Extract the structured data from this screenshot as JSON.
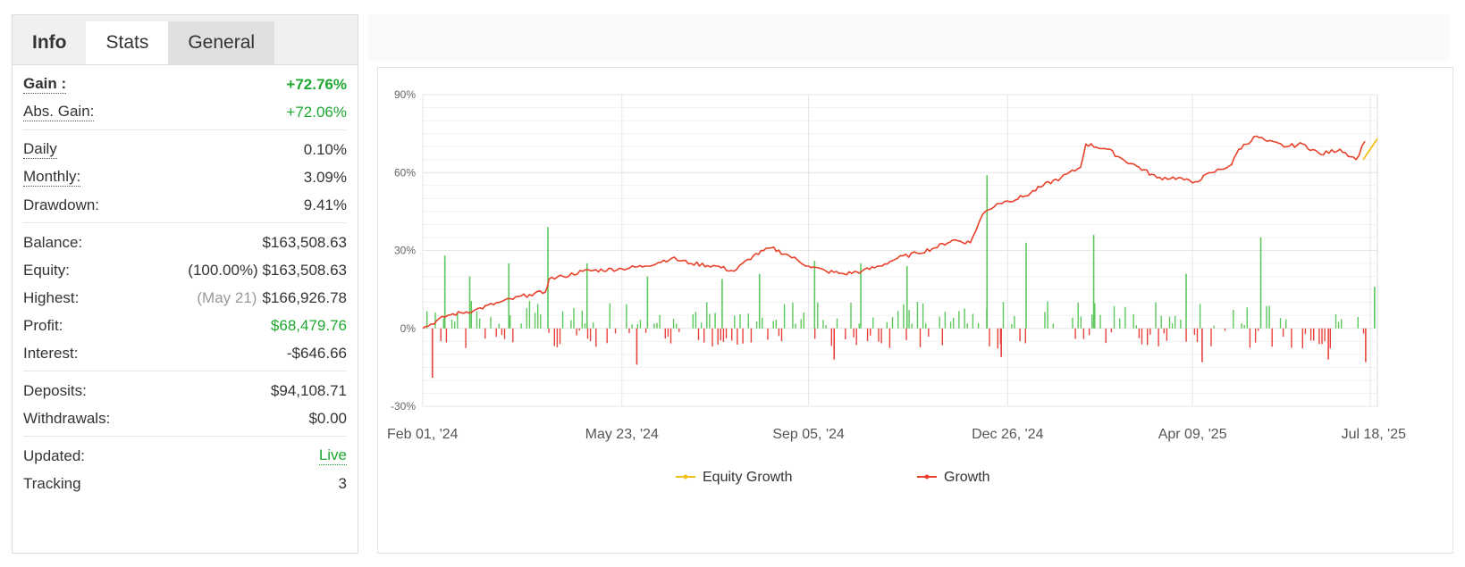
{
  "tabs": [
    {
      "label": "Info"
    },
    {
      "label": "Stats"
    },
    {
      "label": "General"
    }
  ],
  "stats": {
    "gain": {
      "label": "Gain :",
      "value": "+72.76%"
    },
    "abs_gain": {
      "label": "Abs. Gain:",
      "value": "+72.06%"
    },
    "daily": {
      "label": "Daily",
      "value": "0.10%"
    },
    "monthly": {
      "label": "Monthly:",
      "value": "3.09%"
    },
    "drawdown": {
      "label": "Drawdown:",
      "value": "9.41%"
    },
    "balance": {
      "label": "Balance:",
      "value": "$163,508.63"
    },
    "equity": {
      "label": "Equity:",
      "note": "(100.00%)",
      "value": "$163,508.63"
    },
    "highest": {
      "label": "Highest:",
      "note": "(May 21)",
      "value": "$166,926.78"
    },
    "profit": {
      "label": "Profit:",
      "value": "$68,479.76"
    },
    "interest": {
      "label": "Interest:",
      "value": "-$646.66"
    },
    "deposits": {
      "label": "Deposits:",
      "value": "$94,108.71"
    },
    "withdrawals": {
      "label": "Withdrawals:",
      "value": "$0.00"
    },
    "updated": {
      "label": "Updated:",
      "value": "Live"
    },
    "tracking": {
      "label": "Tracking",
      "value": "3"
    }
  },
  "colors": {
    "growth": "#e8412a",
    "equity_growth": "#f2c019",
    "bar_positive": "#5cc85c",
    "bar_negative": "#e8413c",
    "grid": "#e6e6e6"
  },
  "chart_data": {
    "type": "line",
    "x_tick_labels": [
      "Feb 01, '24",
      "May 23, '24",
      "Sep 05, '24",
      "Dec 26, '24",
      "Apr 09, '25",
      "Jul 18, '25"
    ],
    "x_ticks": [
      "2024-02-01",
      "2024-05-23",
      "2024-09-05",
      "2024-12-26",
      "2025-04-09",
      "2025-07-18"
    ],
    "xlim": [
      "2024-02-01",
      "2025-07-22"
    ],
    "y_tick_labels": [
      "90%",
      "60%",
      "30%",
      "0%",
      "-30%"
    ],
    "ylim": [
      -30,
      90
    ],
    "y_ticks": [
      90,
      60,
      30,
      0,
      -30
    ],
    "grid": true,
    "legend": {
      "placement": "bottom-center",
      "entries": [
        "Equity Growth",
        "Growth"
      ]
    },
    "series": [
      {
        "name": "Growth",
        "kind": "line",
        "x": [
          "2024-02-01",
          "2024-02-15",
          "2024-03-01",
          "2024-03-15",
          "2024-04-01",
          "2024-04-10",
          "2024-04-12",
          "2024-04-20",
          "2024-05-01",
          "2024-05-23",
          "2024-06-05",
          "2024-06-20",
          "2024-07-01",
          "2024-07-15",
          "2024-07-25",
          "2024-08-05",
          "2024-08-15",
          "2024-08-25",
          "2024-09-05",
          "2024-09-15",
          "2024-09-25",
          "2024-10-05",
          "2024-10-15",
          "2024-10-25",
          "2024-11-05",
          "2024-11-15",
          "2024-11-25",
          "2024-12-05",
          "2024-12-10",
          "2024-12-12",
          "2024-12-20",
          "2024-12-26",
          "2025-01-05",
          "2025-01-15",
          "2025-01-25",
          "2025-02-05",
          "2025-02-08",
          "2025-02-20",
          "2025-03-01",
          "2025-03-10",
          "2025-03-20",
          "2025-04-01",
          "2025-04-09",
          "2025-04-20",
          "2025-05-01",
          "2025-05-05",
          "2025-05-15",
          "2025-05-21",
          "2025-06-01",
          "2025-06-10",
          "2025-06-20",
          "2025-07-01",
          "2025-07-10",
          "2025-07-15"
        ],
        "y": [
          0,
          5,
          7,
          10,
          13,
          14,
          19,
          20,
          22,
          23,
          24,
          27,
          25,
          24,
          22,
          28,
          31,
          28,
          24,
          22,
          21,
          22,
          24,
          27,
          29,
          31,
          34,
          33,
          41,
          44,
          48,
          49,
          51,
          55,
          58,
          62,
          71,
          69,
          65,
          62,
          58,
          58,
          56,
          60,
          63,
          69,
          74,
          72,
          70,
          71,
          67,
          69,
          65,
          72
        ]
      },
      {
        "name": "Equity Growth",
        "kind": "line",
        "x": [
          "2025-07-14",
          "2025-07-22"
        ],
        "y": [
          65,
          73
        ]
      },
      {
        "name": "Daily",
        "kind": "bar",
        "x": [
          "2024-02-13",
          "2024-02-27",
          "2024-03-20",
          "2024-04-11",
          "2024-05-03",
          "2024-06-06",
          "2024-07-18",
          "2024-08-08",
          "2024-09-08",
          "2024-10-04",
          "2024-10-30",
          "2024-12-14",
          "2025-01-05",
          "2025-02-12",
          "2025-04-05",
          "2025-05-17",
          "2025-07-20",
          "2024-02-06",
          "2024-05-31",
          "2024-09-19",
          "2024-12-22",
          "2025-04-14",
          "2025-06-24",
          "2025-07-15"
        ],
        "y": [
          28,
          20,
          25,
          39,
          25,
          20,
          19,
          21,
          26,
          25,
          24,
          59,
          33,
          36,
          21,
          35,
          16,
          -19,
          -14,
          -12,
          -11,
          -13,
          -12,
          -13
        ]
      }
    ]
  }
}
